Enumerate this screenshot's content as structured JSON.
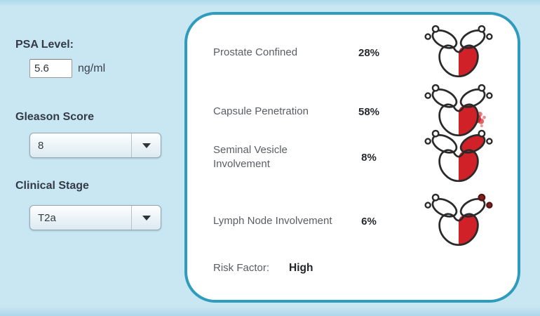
{
  "left_panel": {
    "psa": {
      "label": "PSA Level:",
      "value": "5.6",
      "unit": "ng/ml"
    },
    "gleason": {
      "label": "Gleason Score",
      "selected": "8"
    },
    "stage": {
      "label": "Clinical Stage",
      "selected": "T2a"
    }
  },
  "results_panel": {
    "rows": [
      {
        "label": "Prostate Confined",
        "value": "28%",
        "illustration": "prostate-confined"
      },
      {
        "label": "Capsule Penetration",
        "value": "58%",
        "illustration": "capsule-penetration"
      },
      {
        "label": "Seminal Vesicle Involvement",
        "value": "8%",
        "illustration": "seminal-vesicle-involvement"
      },
      {
        "label": "Lymph Node Involvement",
        "value": "6%",
        "illustration": "lymph-node-involvement"
      }
    ],
    "risk": {
      "label": "Risk Factor:",
      "value": "High"
    }
  },
  "colors": {
    "background_blue": "#c9e6f3",
    "panel_border_teal": "#2f9cbe",
    "highlight_red": "#cf2127",
    "node_dark_red": "#7d2321",
    "ink": "#2a2a2a"
  }
}
